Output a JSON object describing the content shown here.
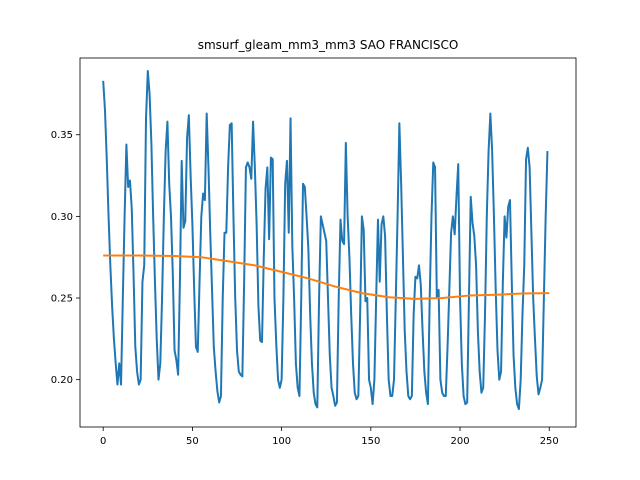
{
  "chart_data": {
    "type": "line",
    "title": "smsurf_gleam_mm3_mm3 SAO FRANCISCO",
    "xlabel": "",
    "ylabel": "",
    "xlim": [
      -13,
      265
    ],
    "ylim": [
      0.171,
      0.397
    ],
    "x_ticks": [
      0,
      50,
      100,
      150,
      200,
      250
    ],
    "y_ticks": [
      0.2,
      0.25,
      0.3,
      0.35
    ],
    "x_tick_labels": [
      "0",
      "50",
      "100",
      "150",
      "200",
      "250"
    ],
    "y_tick_labels": [
      "0.20",
      "0.25",
      "0.30",
      "0.35"
    ],
    "grid": false,
    "legend": "none",
    "series": [
      {
        "color": "#1f77b4",
        "points": [
          [
            0,
            0.383
          ],
          [
            1,
            0.365
          ],
          [
            2,
            0.335
          ],
          [
            3,
            0.3
          ],
          [
            4,
            0.27
          ],
          [
            5,
            0.245
          ],
          [
            6,
            0.225
          ],
          [
            7,
            0.21
          ],
          [
            8,
            0.197
          ],
          [
            9,
            0.21
          ],
          [
            10,
            0.197
          ],
          [
            11,
            0.25
          ],
          [
            12,
            0.3
          ],
          [
            13,
            0.344
          ],
          [
            14,
            0.318
          ],
          [
            15,
            0.322
          ],
          [
            16,
            0.305
          ],
          [
            17,
            0.265
          ],
          [
            18,
            0.22
          ],
          [
            19,
            0.205
          ],
          [
            20,
            0.197
          ],
          [
            21,
            0.2
          ],
          [
            22,
            0.26
          ],
          [
            23,
            0.27
          ],
          [
            24,
            0.36
          ],
          [
            25,
            0.389
          ],
          [
            26,
            0.375
          ],
          [
            27,
            0.345
          ],
          [
            28,
            0.3
          ],
          [
            29,
            0.26
          ],
          [
            30,
            0.225
          ],
          [
            31,
            0.2
          ],
          [
            32,
            0.21
          ],
          [
            33,
            0.25
          ],
          [
            34,
            0.3
          ],
          [
            35,
            0.34
          ],
          [
            36,
            0.358
          ],
          [
            37,
            0.32
          ],
          [
            38,
            0.3
          ],
          [
            39,
            0.265
          ],
          [
            40,
            0.218
          ],
          [
            41,
            0.212
          ],
          [
            42,
            0.203
          ],
          [
            43,
            0.26
          ],
          [
            44,
            0.334
          ],
          [
            45,
            0.293
          ],
          [
            46,
            0.297
          ],
          [
            47,
            0.348
          ],
          [
            48,
            0.362
          ],
          [
            49,
            0.325
          ],
          [
            50,
            0.295
          ],
          [
            51,
            0.255
          ],
          [
            52,
            0.22
          ],
          [
            53,
            0.217
          ],
          [
            54,
            0.26
          ],
          [
            55,
            0.3
          ],
          [
            56,
            0.314
          ],
          [
            57,
            0.31
          ],
          [
            58,
            0.363
          ],
          [
            59,
            0.33
          ],
          [
            60,
            0.29
          ],
          [
            61,
            0.255
          ],
          [
            62,
            0.22
          ],
          [
            63,
            0.205
          ],
          [
            64,
            0.193
          ],
          [
            65,
            0.186
          ],
          [
            66,
            0.19
          ],
          [
            67,
            0.25
          ],
          [
            68,
            0.29
          ],
          [
            69,
            0.29
          ],
          [
            70,
            0.33
          ],
          [
            71,
            0.356
          ],
          [
            72,
            0.357
          ],
          [
            73,
            0.3
          ],
          [
            74,
            0.25
          ],
          [
            75,
            0.218
          ],
          [
            76,
            0.205
          ],
          [
            77,
            0.203
          ],
          [
            78,
            0.202
          ],
          [
            79,
            0.26
          ],
          [
            80,
            0.33
          ],
          [
            81,
            0.333
          ],
          [
            82,
            0.33
          ],
          [
            83,
            0.323
          ],
          [
            84,
            0.358
          ],
          [
            85,
            0.33
          ],
          [
            86,
            0.295
          ],
          [
            87,
            0.245
          ],
          [
            88,
            0.224
          ],
          [
            89,
            0.223
          ],
          [
            90,
            0.275
          ],
          [
            91,
            0.317
          ],
          [
            92,
            0.33
          ],
          [
            93,
            0.286
          ],
          [
            94,
            0.336
          ],
          [
            95,
            0.335
          ],
          [
            96,
            0.25
          ],
          [
            97,
            0.222
          ],
          [
            98,
            0.2
          ],
          [
            99,
            0.195
          ],
          [
            100,
            0.2
          ],
          [
            101,
            0.25
          ],
          [
            102,
            0.32
          ],
          [
            103,
            0.334
          ],
          [
            104,
            0.29
          ],
          [
            105,
            0.36
          ],
          [
            106,
            0.282
          ],
          [
            107,
            0.25
          ],
          [
            108,
            0.21
          ],
          [
            109,
            0.195
          ],
          [
            110,
            0.19
          ],
          [
            111,
            0.25
          ],
          [
            112,
            0.32
          ],
          [
            113,
            0.318
          ],
          [
            114,
            0.3
          ],
          [
            115,
            0.28
          ],
          [
            116,
            0.24
          ],
          [
            117,
            0.21
          ],
          [
            118,
            0.192
          ],
          [
            119,
            0.185
          ],
          [
            120,
            0.183
          ],
          [
            121,
            0.25
          ],
          [
            122,
            0.3
          ],
          [
            123,
            0.295
          ],
          [
            124,
            0.29
          ],
          [
            125,
            0.285
          ],
          [
            126,
            0.25
          ],
          [
            127,
            0.215
          ],
          [
            128,
            0.195
          ],
          [
            129,
            0.19
          ],
          [
            130,
            0.184
          ],
          [
            131,
            0.186
          ],
          [
            132,
            0.25
          ],
          [
            133,
            0.298
          ],
          [
            134,
            0.285
          ],
          [
            135,
            0.283
          ],
          [
            136,
            0.345
          ],
          [
            137,
            0.3
          ],
          [
            138,
            0.275
          ],
          [
            139,
            0.24
          ],
          [
            140,
            0.21
          ],
          [
            141,
            0.192
          ],
          [
            142,
            0.188
          ],
          [
            143,
            0.19
          ],
          [
            144,
            0.24
          ],
          [
            145,
            0.3
          ],
          [
            146,
            0.292
          ],
          [
            147,
            0.248
          ],
          [
            148,
            0.25
          ],
          [
            149,
            0.2
          ],
          [
            150,
            0.195
          ],
          [
            151,
            0.185
          ],
          [
            152,
            0.2
          ],
          [
            153,
            0.25
          ],
          [
            154,
            0.298
          ],
          [
            155,
            0.26
          ],
          [
            156,
            0.295
          ],
          [
            157,
            0.3
          ],
          [
            158,
            0.288
          ],
          [
            159,
            0.24
          ],
          [
            160,
            0.2
          ],
          [
            161,
            0.19
          ],
          [
            162,
            0.19
          ],
          [
            163,
            0.2
          ],
          [
            164,
            0.25
          ],
          [
            165,
            0.3
          ],
          [
            166,
            0.357
          ],
          [
            167,
            0.32
          ],
          [
            168,
            0.275
          ],
          [
            169,
            0.23
          ],
          [
            170,
            0.205
          ],
          [
            171,
            0.19
          ],
          [
            172,
            0.188
          ],
          [
            173,
            0.19
          ],
          [
            174,
            0.24
          ],
          [
            175,
            0.263
          ],
          [
            176,
            0.262
          ],
          [
            177,
            0.27
          ],
          [
            178,
            0.258
          ],
          [
            179,
            0.23
          ],
          [
            180,
            0.205
          ],
          [
            181,
            0.192
          ],
          [
            182,
            0.185
          ],
          [
            183,
            0.25
          ],
          [
            184,
            0.3
          ],
          [
            185,
            0.333
          ],
          [
            186,
            0.33
          ],
          [
            187,
            0.25
          ],
          [
            188,
            0.255
          ],
          [
            189,
            0.2
          ],
          [
            190,
            0.192
          ],
          [
            191,
            0.19
          ],
          [
            192,
            0.19
          ],
          [
            193,
            0.22
          ],
          [
            194,
            0.255
          ],
          [
            195,
            0.29
          ],
          [
            196,
            0.3
          ],
          [
            197,
            0.289
          ],
          [
            198,
            0.312
          ],
          [
            199,
            0.332
          ],
          [
            200,
            0.25
          ],
          [
            201,
            0.21
          ],
          [
            202,
            0.19
          ],
          [
            203,
            0.185
          ],
          [
            204,
            0.186
          ],
          [
            205,
            0.25
          ],
          [
            206,
            0.312
          ],
          [
            207,
            0.296
          ],
          [
            208,
            0.288
          ],
          [
            209,
            0.27
          ],
          [
            210,
            0.23
          ],
          [
            211,
            0.205
          ],
          [
            212,
            0.192
          ],
          [
            213,
            0.195
          ],
          [
            214,
            0.24
          ],
          [
            215,
            0.3
          ],
          [
            216,
            0.34
          ],
          [
            217,
            0.363
          ],
          [
            218,
            0.34
          ],
          [
            219,
            0.3
          ],
          [
            220,
            0.255
          ],
          [
            221,
            0.218
          ],
          [
            222,
            0.2
          ],
          [
            223,
            0.205
          ],
          [
            224,
            0.26
          ],
          [
            225,
            0.3
          ],
          [
            226,
            0.287
          ],
          [
            227,
            0.306
          ],
          [
            228,
            0.31
          ],
          [
            229,
            0.26
          ],
          [
            230,
            0.215
          ],
          [
            231,
            0.195
          ],
          [
            232,
            0.185
          ],
          [
            233,
            0.182
          ],
          [
            234,
            0.2
          ],
          [
            235,
            0.24
          ],
          [
            236,
            0.27
          ],
          [
            237,
            0.335
          ],
          [
            238,
            0.342
          ],
          [
            239,
            0.33
          ],
          [
            240,
            0.29
          ],
          [
            241,
            0.25
          ],
          [
            242,
            0.225
          ],
          [
            243,
            0.202
          ],
          [
            244,
            0.191
          ],
          [
            245,
            0.195
          ],
          [
            246,
            0.2
          ],
          [
            247,
            0.25
          ],
          [
            248,
            0.3
          ],
          [
            249,
            0.34
          ]
        ]
      },
      {
        "color": "#ff7f0e",
        "points": [
          [
            0,
            0.276
          ],
          [
            20,
            0.276
          ],
          [
            40,
            0.2757
          ],
          [
            55,
            0.275
          ],
          [
            70,
            0.2725
          ],
          [
            85,
            0.27
          ],
          [
            100,
            0.266
          ],
          [
            115,
            0.262
          ],
          [
            130,
            0.257
          ],
          [
            145,
            0.253
          ],
          [
            160,
            0.2505
          ],
          [
            175,
            0.2495
          ],
          [
            190,
            0.25
          ],
          [
            205,
            0.2515
          ],
          [
            220,
            0.252
          ],
          [
            235,
            0.2528
          ],
          [
            250,
            0.253
          ]
        ]
      }
    ]
  }
}
